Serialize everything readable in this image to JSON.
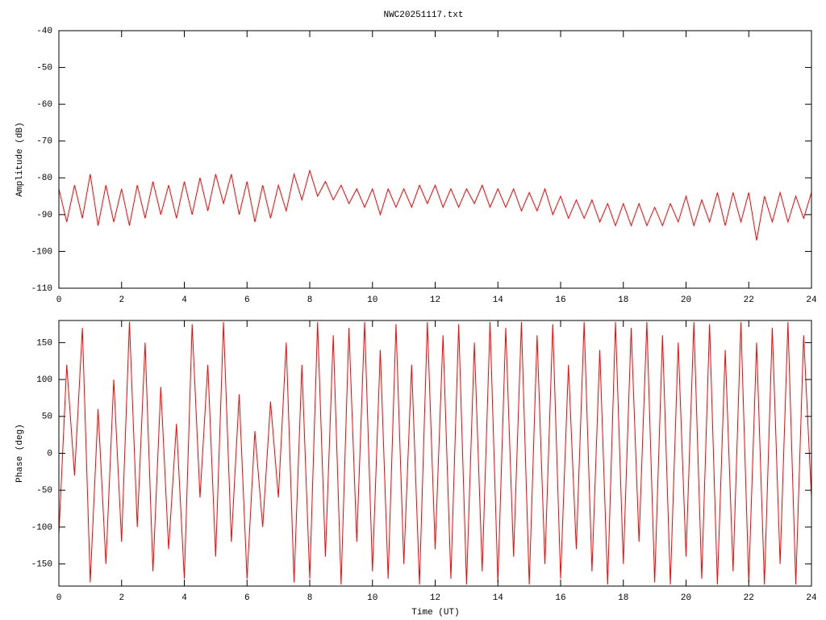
{
  "chart_data": [
    {
      "type": "line",
      "title": "NWC20251117.txt",
      "ylabel": "Amplitude (dB)",
      "x": [
        0,
        0.25,
        0.5,
        0.75,
        1,
        1.25,
        1.5,
        1.75,
        2,
        2.25,
        2.5,
        2.75,
        3,
        3.25,
        3.5,
        3.75,
        4,
        4.25,
        4.5,
        4.75,
        5,
        5.25,
        5.5,
        5.75,
        6,
        6.25,
        6.5,
        6.75,
        7,
        7.25,
        7.5,
        7.75,
        8,
        8.25,
        8.5,
        8.75,
        9,
        9.25,
        9.5,
        9.75,
        10,
        10.25,
        10.5,
        10.75,
        11,
        11.25,
        11.5,
        11.75,
        12,
        12.25,
        12.5,
        12.75,
        13,
        13.25,
        13.5,
        13.75,
        14,
        14.25,
        14.5,
        14.75,
        15,
        15.25,
        15.5,
        15.75,
        16,
        16.25,
        16.5,
        16.75,
        17,
        17.25,
        17.5,
        17.75,
        18,
        18.25,
        18.5,
        18.75,
        19,
        19.25,
        19.5,
        19.75,
        20,
        20.25,
        20.5,
        20.75,
        21,
        21.25,
        21.5,
        21.75,
        22,
        22.25,
        22.5,
        22.75,
        23,
        23.25,
        23.5,
        23.75,
        24
      ],
      "series": [
        {
          "color": "#ff0000",
          "values": [
            -83,
            -92,
            -82,
            -91,
            -79,
            -93,
            -82,
            -92,
            -83,
            -93,
            -82,
            -91,
            -81,
            -90,
            -82,
            -91,
            -81,
            -90,
            -80,
            -89,
            -79,
            -87,
            -79,
            -90,
            -81,
            -92,
            -82,
            -91,
            -82,
            -89,
            -79,
            -86,
            -78,
            -85,
            -81,
            -86,
            -82,
            -87,
            -83,
            -88,
            -83,
            -90,
            -83,
            -88,
            -83,
            -88,
            -82,
            -87,
            -82,
            -88,
            -83,
            -88,
            -83,
            -87,
            -82,
            -88,
            -83,
            -88,
            -83,
            -89,
            -84,
            -89,
            -83,
            -90,
            -85,
            -91,
            -86,
            -91,
            -86,
            -92,
            -87,
            -93,
            -87,
            -93,
            -87,
            -93,
            -88,
            -93,
            -87,
            -92,
            -85,
            -93,
            -86,
            -92,
            -84,
            -93,
            -84,
            -92,
            -84,
            -97,
            -85,
            -92,
            -84,
            -92,
            -85,
            -91,
            -84
          ]
        }
      ],
      "xlim": [
        0,
        24
      ],
      "xticks": [
        0,
        2,
        4,
        6,
        8,
        10,
        12,
        14,
        16,
        18,
        20,
        22,
        24
      ],
      "ylim": [
        -110,
        -40
      ],
      "yticks": [
        -40,
        -50,
        -60,
        -70,
        -80,
        -90,
        -100,
        -110
      ]
    },
    {
      "type": "line",
      "xlabel": "Time (UT)",
      "ylabel": "Phase (deg)",
      "x": [
        0,
        0.25,
        0.5,
        0.75,
        1,
        1.25,
        1.5,
        1.75,
        2,
        2.25,
        2.5,
        2.75,
        3,
        3.25,
        3.5,
        3.75,
        4,
        4.25,
        4.5,
        4.75,
        5,
        5.25,
        5.5,
        5.75,
        6,
        6.25,
        6.5,
        6.75,
        7,
        7.25,
        7.5,
        7.75,
        8,
        8.25,
        8.5,
        8.75,
        9,
        9.25,
        9.5,
        9.75,
        10,
        10.25,
        10.5,
        10.75,
        11,
        11.25,
        11.5,
        11.75,
        12,
        12.25,
        12.5,
        12.75,
        13,
        13.25,
        13.5,
        13.75,
        14,
        14.25,
        14.5,
        14.75,
        15,
        15.25,
        15.5,
        15.75,
        16,
        16.25,
        16.5,
        16.75,
        17,
        17.25,
        17.5,
        17.75,
        18,
        18.25,
        18.5,
        18.75,
        19,
        19.25,
        19.5,
        19.75,
        20,
        20.25,
        20.5,
        20.75,
        21,
        21.25,
        21.5,
        21.75,
        22,
        22.25,
        22.5,
        22.75,
        23,
        23.25,
        23.5,
        23.75,
        24
      ],
      "series": [
        {
          "color": "#ff0000",
          "values": [
            -110,
            120,
            -30,
            170,
            -175,
            60,
            -150,
            100,
            -120,
            178,
            -100,
            150,
            -160,
            90,
            -130,
            40,
            -170,
            175,
            -60,
            120,
            -140,
            178,
            -120,
            80,
            -170,
            30,
            -100,
            70,
            -60,
            150,
            -175,
            120,
            -170,
            178,
            -140,
            160,
            -178,
            170,
            -120,
            178,
            -160,
            140,
            -170,
            175,
            -150,
            120,
            -178,
            178,
            -130,
            160,
            -170,
            175,
            -178,
            150,
            -160,
            178,
            -175,
            170,
            -140,
            178,
            -178,
            160,
            -150,
            175,
            -170,
            120,
            -130,
            178,
            -160,
            140,
            -178,
            178,
            -150,
            170,
            -120,
            178,
            -175,
            160,
            -178,
            150,
            -140,
            178,
            -170,
            175,
            -178,
            140,
            -160,
            178,
            -175,
            150,
            -178,
            170,
            -150,
            178,
            -178,
            160,
            -60
          ]
        }
      ],
      "xlim": [
        0,
        24
      ],
      "xticks": [
        0,
        2,
        4,
        6,
        8,
        10,
        12,
        14,
        16,
        18,
        20,
        22,
        24
      ],
      "ylim": [
        -180,
        180
      ],
      "yticks": [
        150,
        100,
        50,
        0,
        -50,
        -100,
        -150
      ]
    }
  ]
}
